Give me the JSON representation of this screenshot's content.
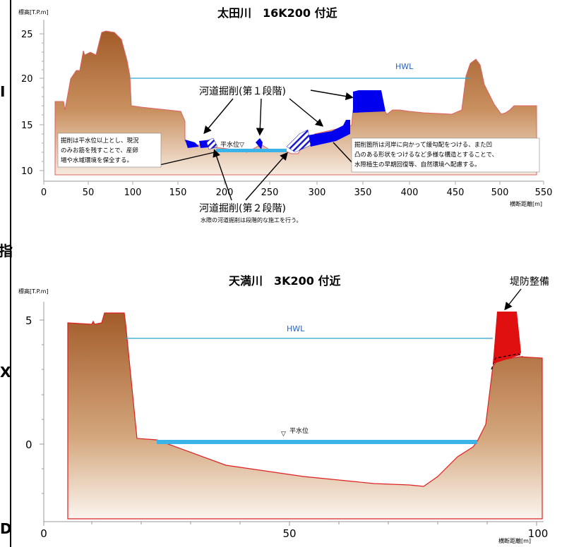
{
  "left_margin_chars": [
    "I",
    "指",
    "X",
    "D"
  ],
  "top_section": {
    "title": "太田川　16K200 付近",
    "ylabel": "標高[T.P.m]",
    "xlabel": "横断距離[m]",
    "y_ticks": [
      "25",
      "20",
      "15",
      "10"
    ],
    "x_ticks": [
      "0",
      "50",
      "100",
      "150",
      "200",
      "250",
      "300",
      "350",
      "400",
      "450",
      "500",
      "550"
    ],
    "hwl_label": "HWL",
    "water_label": "平水位▽",
    "stage1_label": "河道掘削(第１段階)",
    "stage2_label": "河道掘削(第２段階)",
    "stage2_note": "水際の河道掘削は段階的な施工を行う。",
    "left_note": [
      "掘削は平水位以上とし、現況",
      "のみお筋を残すことで、産卵",
      "場や水域環境を保全する。"
    ],
    "right_note": [
      "掘削箇所は河岸に向かって緩勾配をつける、また凹",
      "凸のある形状をつけるなど多様な構造とすることで、",
      "水際植生の早期回復等、自然環境へ配慮する。"
    ],
    "colors": {
      "ground": "#b36a36",
      "excavation": "#0000ee",
      "hwl": "#2aa6d8",
      "bed_line": "#e02020"
    }
  },
  "bottom_section": {
    "title": "天満川　3K200 付近",
    "ylabel": "標高[T.P.m]",
    "xlabel": "横断距離[m]",
    "y_ticks": [
      "5",
      "0"
    ],
    "x_ticks": [
      "0",
      "50",
      "100"
    ],
    "hwl_label": "HWL",
    "water_label": "平水位",
    "levee_label": "堤防整備",
    "colors": {
      "ground": "#b36a36",
      "levee": "#e01010",
      "hwl": "#2aa6d8",
      "water": "#3ab4e8"
    }
  }
}
